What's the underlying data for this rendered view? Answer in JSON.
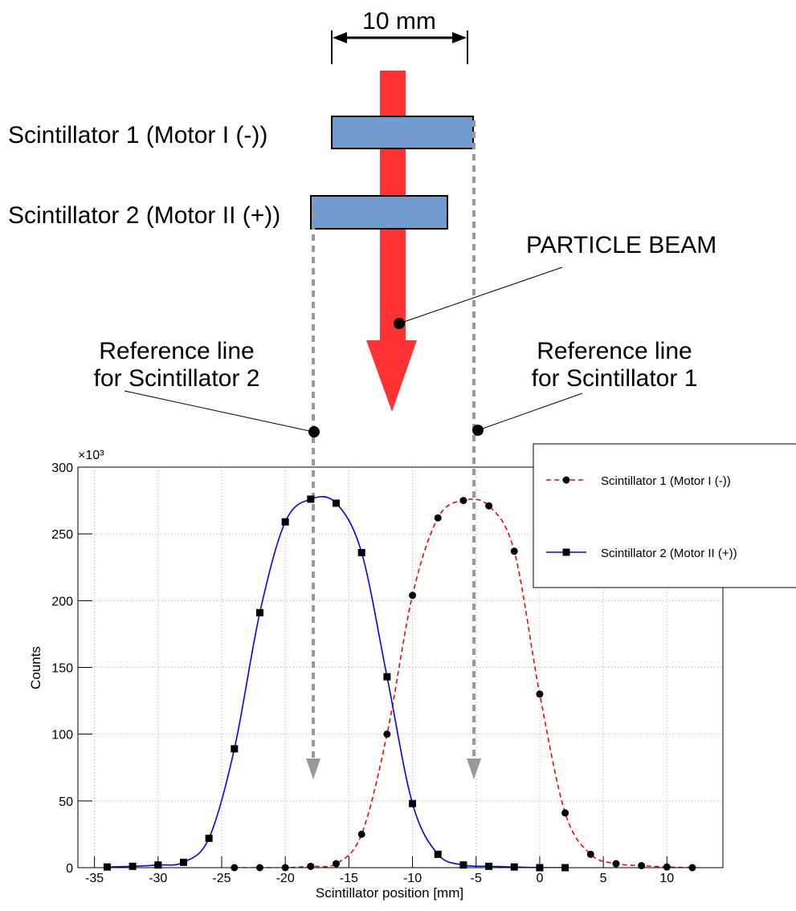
{
  "diagram": {
    "dimension": "10 mm",
    "scintillator_1": "Scintillator 1 (Motor I (-))",
    "scintillator_2": "Scintillator 2 (Motor II (+))",
    "beam": "PARTICLE BEAM",
    "ref_2": [
      "Reference line",
      "for Scintillator 2"
    ],
    "ref_1": [
      "Reference line",
      "for Scintillator 1"
    ]
  },
  "chart_data": {
    "type": "line",
    "x_label": "Scintillator position [mm]",
    "y_label": "Counts",
    "y_multiplier": "×10³",
    "xlim": [
      -36.3,
      14.4
    ],
    "ylim": [
      0,
      300
    ],
    "xticks": [
      -35,
      -30,
      -25,
      -20,
      -15,
      -10,
      -5,
      0,
      5,
      10
    ],
    "yticks": [
      0,
      50,
      100,
      150,
      200,
      250,
      300
    ],
    "grid": true,
    "series": [
      {
        "name": "Scintillator 1 (Motor I (-))",
        "color": "#ff0000",
        "dash": true,
        "marker": "circle",
        "x": [
          -24,
          -22,
          -20,
          -18,
          -16,
          -14,
          -12,
          -10,
          -8,
          -6,
          -4,
          -2,
          0,
          2,
          4,
          6,
          8,
          10,
          12
        ],
        "values": [
          0,
          0,
          0,
          1,
          3,
          25,
          100,
          204,
          262,
          275,
          271,
          237,
          130,
          41,
          10,
          3,
          1.5,
          0.5,
          0
        ]
      },
      {
        "name": "Scintillator 2 (Motor II (+))",
        "color": "#0000ff",
        "dash": false,
        "marker": "square",
        "x": [
          -34,
          -32,
          -30,
          -28,
          -26,
          -24,
          -22,
          -20,
          -18,
          -16,
          -14,
          -12,
          -10,
          -8,
          -6,
          -4,
          -2,
          0,
          2
        ],
        "values": [
          0.5,
          1,
          2,
          4,
          22,
          89,
          191,
          259,
          276,
          273,
          236,
          143,
          48,
          10,
          2,
          1,
          0.5,
          0,
          0
        ]
      }
    ]
  }
}
